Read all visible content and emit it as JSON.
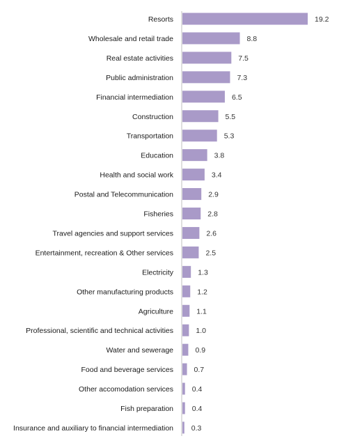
{
  "colors": {
    "bar": "#A99AC8",
    "axis": "#BFBFBF"
  },
  "chart_data": {
    "type": "bar",
    "orientation": "horizontal",
    "title": "",
    "xlabel": "",
    "ylabel": "",
    "grid": false,
    "categories": [
      "Resorts",
      "Wholesale and retail trade",
      "Real estate activities",
      "Public administration",
      "Financial intermediation",
      "Construction",
      "Transportation",
      "Education",
      "Health and social work",
      "Postal and Telecommunication",
      "Fisheries",
      "Travel agencies and support services",
      "Entertainment, recreation & Other services",
      "Electricity",
      "Other manufacturing products",
      "Agriculture",
      "Professional, scientific and technical activities",
      "Water and sewerage",
      "Food and beverage services",
      "Other accomodation services",
      "Fish preparation",
      "Insurance and auxiliary to financial intermediation"
    ],
    "values": [
      19.2,
      8.8,
      7.5,
      7.3,
      6.5,
      5.5,
      5.3,
      3.8,
      3.4,
      2.9,
      2.8,
      2.6,
      2.5,
      1.3,
      1.2,
      1.1,
      1.0,
      0.9,
      0.7,
      0.4,
      0.4,
      0.3
    ],
    "value_labels": [
      "19.2",
      "8.8",
      "7.5",
      "7.3",
      "6.5",
      "5.5",
      "5.3",
      "3.8",
      "3.4",
      "2.9",
      "2.8",
      "2.6",
      "2.5",
      "1.3",
      "1.2",
      "1.1",
      "1.0",
      "0.9",
      "0.7",
      "0.4",
      "0.4",
      "0.3"
    ]
  }
}
